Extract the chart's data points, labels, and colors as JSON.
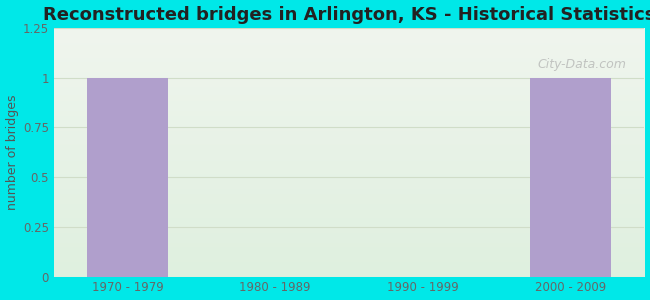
{
  "title": "Reconstructed bridges in Arlington, KS - Historical Statistics",
  "categories": [
    "1970 - 1979",
    "1980 - 1989",
    "1990 - 1999",
    "2000 - 2009"
  ],
  "values": [
    1,
    0,
    0,
    1
  ],
  "bar_color": "#b09fcc",
  "ylabel": "number of bridges",
  "ylim": [
    0,
    1.25
  ],
  "yticks": [
    0,
    0.25,
    0.5,
    0.75,
    1,
    1.25
  ],
  "background_color": "#00e8e8",
  "plot_bg_top": "#f0f5ee",
  "plot_bg_bottom": "#dff0df",
  "grid_color": "#d0ddc8",
  "title_fontsize": 13,
  "axis_label_fontsize": 9,
  "tick_fontsize": 8.5,
  "watermark": "City-Data.com"
}
